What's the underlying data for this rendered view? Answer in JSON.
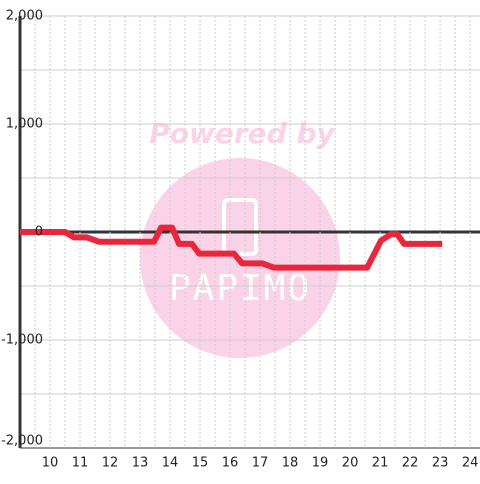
{
  "chart_data": {
    "type": "line",
    "watermark": {
      "line1": "Powered by",
      "line2": "PAPIMO"
    },
    "x": [
      9.0,
      10.5,
      10.8,
      11.23,
      11.63,
      13.47,
      13.7,
      14.07,
      14.3,
      14.73,
      14.97,
      16.13,
      16.4,
      17.07,
      17.47,
      20.57,
      21.03,
      21.37,
      21.57,
      21.8,
      23.07
    ],
    "series": [
      {
        "color": "#e8263c",
        "values": [
          0,
          0,
          -50,
          -50,
          -90,
          -90,
          40,
          40,
          -110,
          -110,
          -200,
          -200,
          -290,
          -290,
          -330,
          -330,
          -80,
          -20,
          -20,
          -110,
          -110
        ]
      }
    ],
    "xlim": [
      9,
      24.33
    ],
    "xticks": [
      10,
      11,
      12,
      13,
      14,
      15,
      16,
      17,
      18,
      19,
      20,
      21,
      22,
      23,
      24
    ],
    "minor_xticks": [
      9.5,
      10.5,
      11.5,
      12.5,
      13.5,
      14.5,
      15.5,
      16.5,
      17.5,
      18.5,
      19.5,
      20.5,
      21.5,
      22.5,
      23.5
    ],
    "ylim": [
      -2000,
      2000
    ],
    "yticks": [
      {
        "value": 2000,
        "label": "2,000"
      },
      {
        "value": 1000,
        "label": "1,000"
      },
      0,
      {
        "value": -1000,
        "label": "-1,000"
      },
      {
        "value": -2000,
        "label": "-2,000"
      }
    ],
    "minor_yticks": [
      1500,
      500,
      -500,
      -1500
    ],
    "grid": true
  }
}
